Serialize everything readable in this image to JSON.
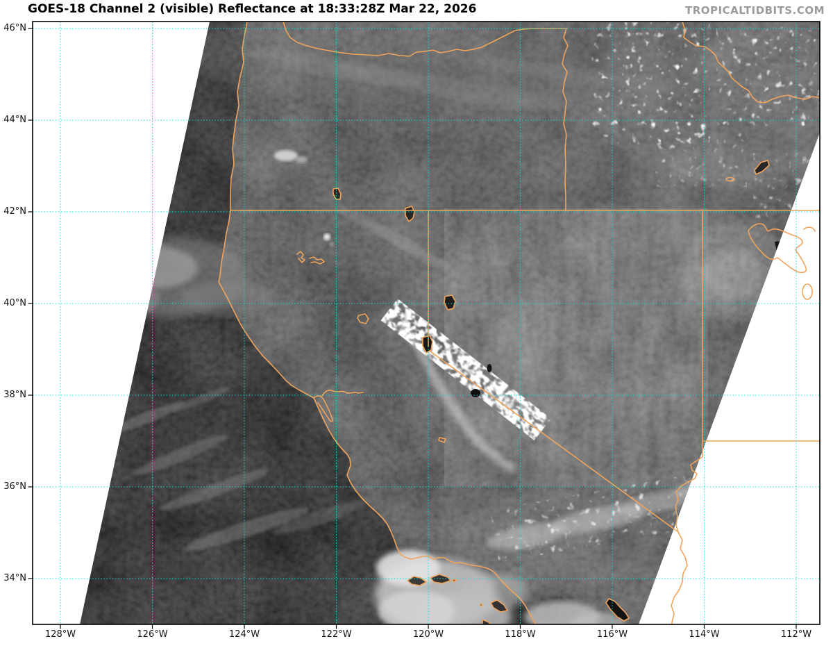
{
  "header": {
    "title": "GOES-18 Channel 2 (visible) Reflectance at 18:33:28Z Mar 22, 2026",
    "watermark": "TROPICALTIDBITS.COM"
  },
  "map": {
    "y_axis": {
      "ticks": [
        {
          "label": "46°N",
          "value": 46
        },
        {
          "label": "44°N",
          "value": 44
        },
        {
          "label": "42°N",
          "value": 42
        },
        {
          "label": "40°N",
          "value": 40
        },
        {
          "label": "38°N",
          "value": 38
        },
        {
          "label": "36°N",
          "value": 36
        },
        {
          "label": "34°N",
          "value": 34
        }
      ]
    },
    "x_axis": {
      "ticks": [
        {
          "label": "128°W",
          "value": 128
        },
        {
          "label": "126°W",
          "value": 126
        },
        {
          "label": "124°W",
          "value": 124
        },
        {
          "label": "122°W",
          "value": 122
        },
        {
          "label": "120°W",
          "value": 120
        },
        {
          "label": "118°W",
          "value": 118
        },
        {
          "label": "116°W",
          "value": 116
        },
        {
          "label": "114°W",
          "value": 114
        },
        {
          "label": "112°W",
          "value": 112
        }
      ]
    },
    "colors": {
      "gridline": "#00E2E2",
      "geo_outline": "#F0A45C",
      "no_data": "#FFFFFF",
      "plot_border": "#000000",
      "title_text": "#000000",
      "watermark_text": "#9B9B9B",
      "tick_text": "#111111"
    }
  }
}
